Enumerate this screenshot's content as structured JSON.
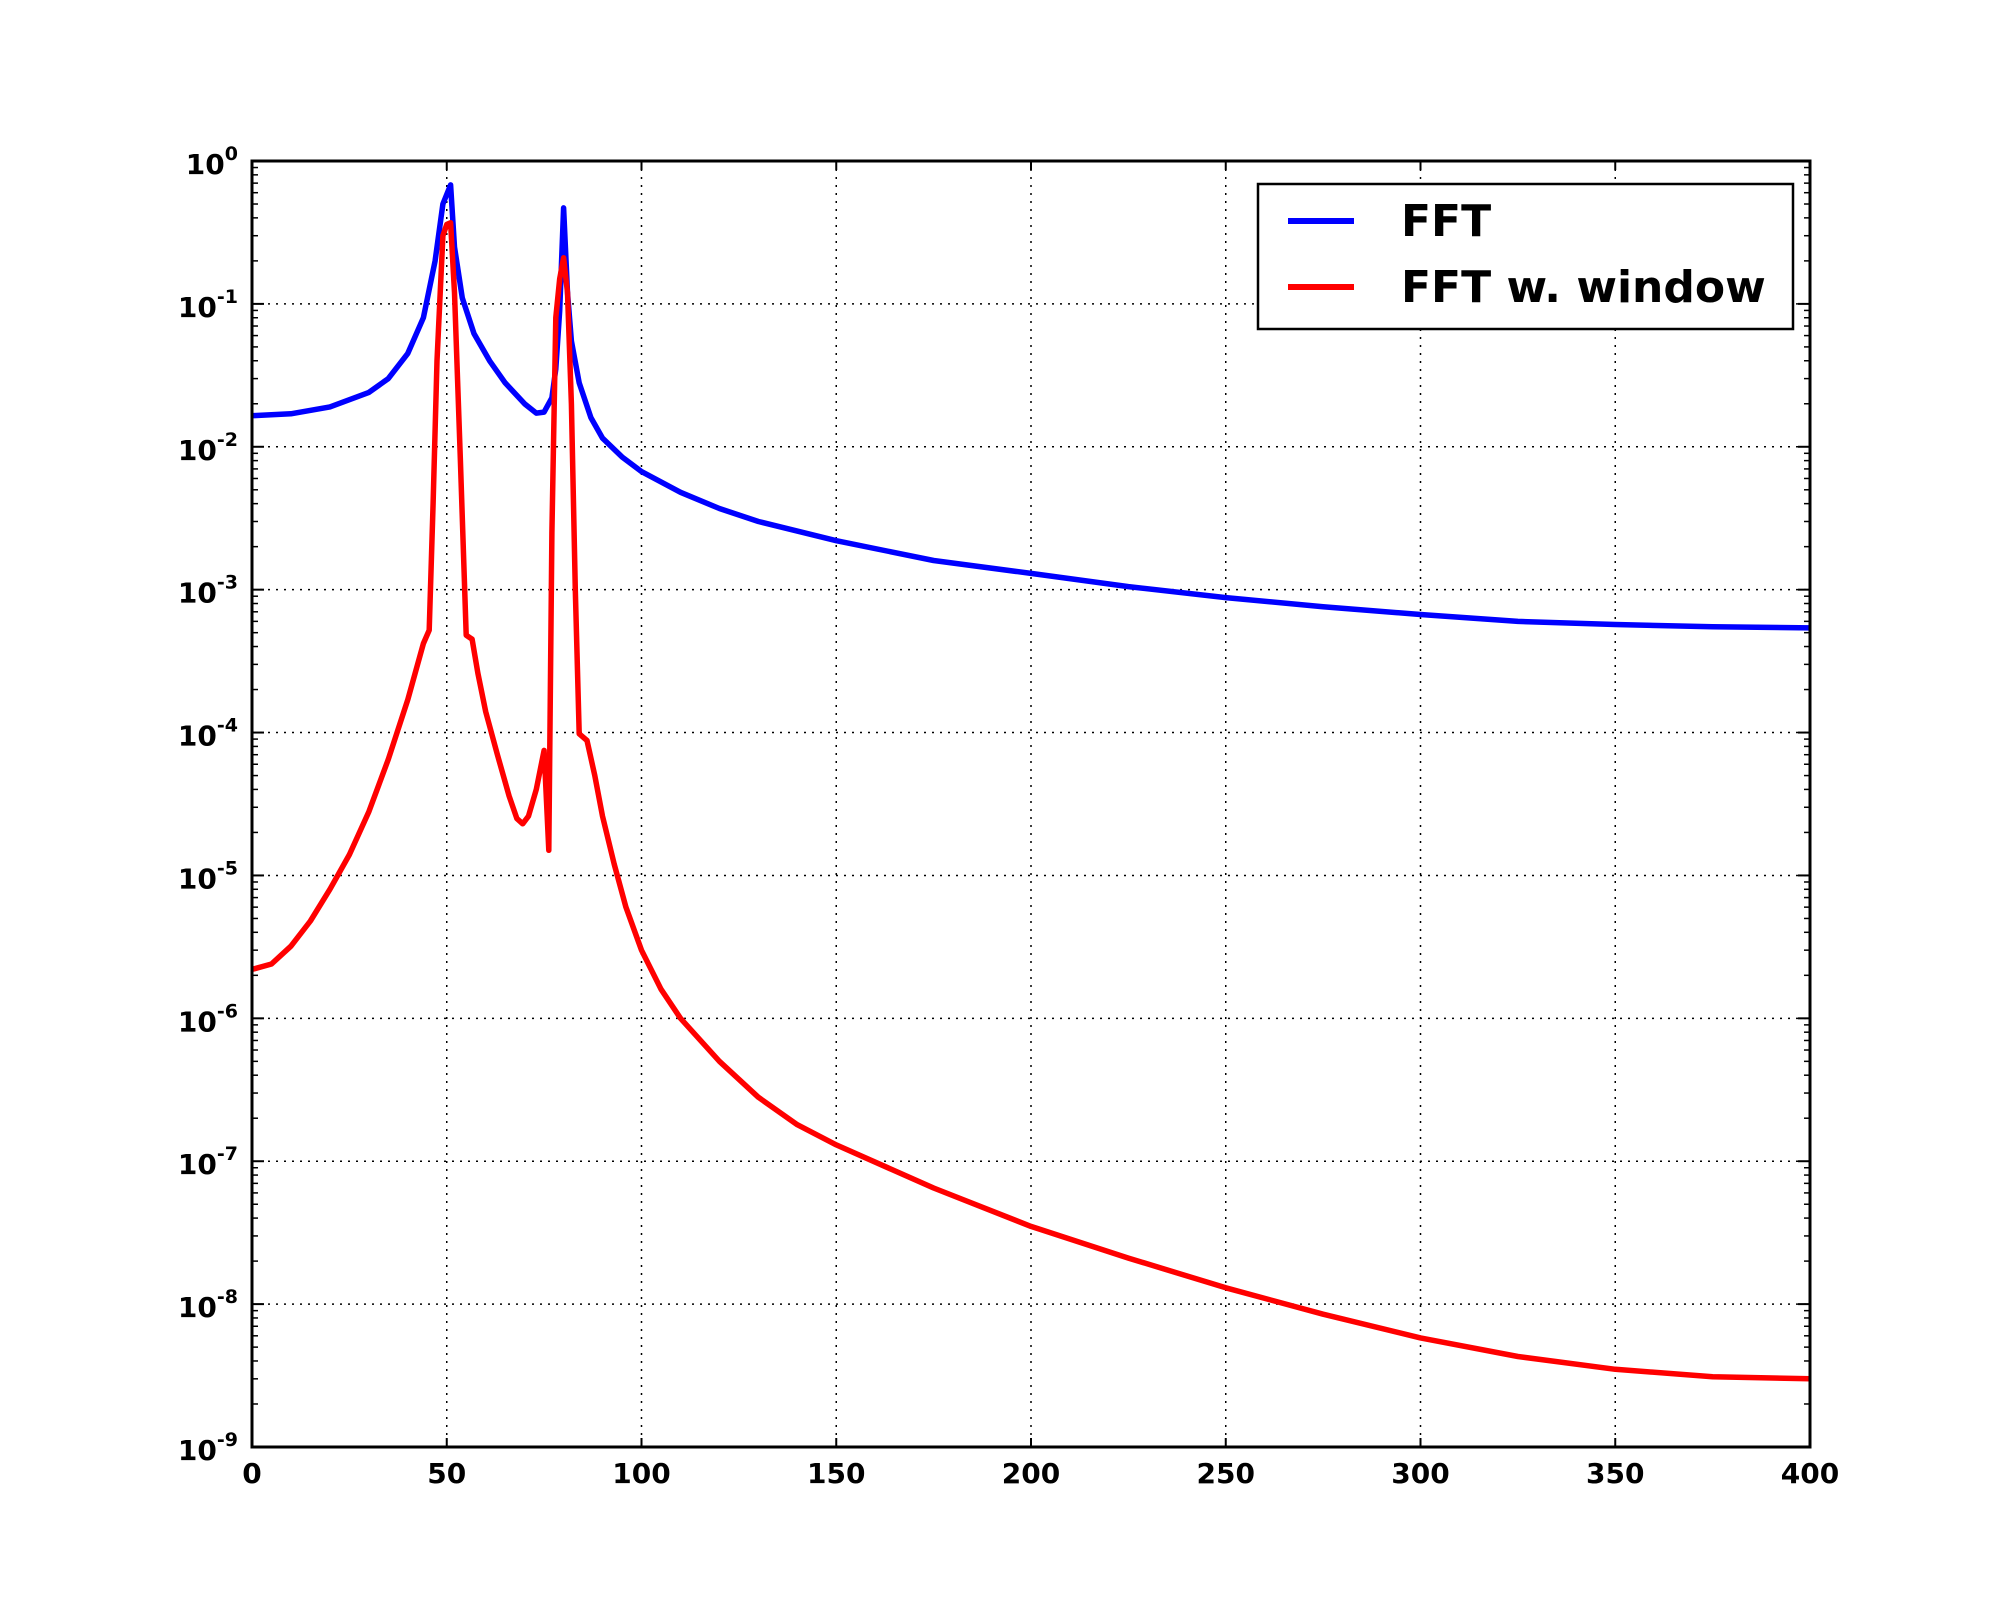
{
  "chart_data": {
    "type": "line",
    "title": "",
    "xlabel": "",
    "ylabel": "",
    "xlim": [
      0,
      400
    ],
    "ylim": [
      1e-09,
      1
    ],
    "yscale": "log",
    "grid": true,
    "legend_position": "top-right",
    "x_ticks": [
      "0",
      "50",
      "100",
      "150",
      "200",
      "250",
      "300",
      "350",
      "400"
    ],
    "y_ticks": [
      {
        "base": "10",
        "exp": "-9"
      },
      {
        "base": "10",
        "exp": "-8"
      },
      {
        "base": "10",
        "exp": "-7"
      },
      {
        "base": "10",
        "exp": "-6"
      },
      {
        "base": "10",
        "exp": "-5"
      },
      {
        "base": "10",
        "exp": "-4"
      },
      {
        "base": "10",
        "exp": "-3"
      },
      {
        "base": "10",
        "exp": "-2"
      },
      {
        "base": "10",
        "exp": "-1"
      },
      {
        "base": "10",
        "exp": "0"
      }
    ],
    "series": [
      {
        "name": "FFT",
        "color": "#0000ff",
        "points": [
          [
            0,
            0.0165
          ],
          [
            10,
            0.017
          ],
          [
            20,
            0.019
          ],
          [
            30,
            0.024
          ],
          [
            35,
            0.03
          ],
          [
            40,
            0.045
          ],
          [
            44,
            0.08
          ],
          [
            47,
            0.2
          ],
          [
            49,
            0.5
          ],
          [
            51,
            0.68
          ],
          [
            52,
            0.25
          ],
          [
            54,
            0.11
          ],
          [
            57,
            0.062
          ],
          [
            61,
            0.04
          ],
          [
            65,
            0.028
          ],
          [
            70,
            0.02
          ],
          [
            73,
            0.0172
          ],
          [
            75,
            0.0175
          ],
          [
            77,
            0.022
          ],
          [
            78,
            0.035
          ],
          [
            79,
            0.09
          ],
          [
            80,
            0.47
          ],
          [
            81,
            0.12
          ],
          [
            82,
            0.055
          ],
          [
            84,
            0.028
          ],
          [
            87,
            0.016
          ],
          [
            90,
            0.0115
          ],
          [
            95,
            0.0085
          ],
          [
            100,
            0.0067
          ],
          [
            110,
            0.0048
          ],
          [
            120,
            0.0037
          ],
          [
            130,
            0.003
          ],
          [
            150,
            0.0022
          ],
          [
            175,
            0.0016
          ],
          [
            200,
            0.0013
          ],
          [
            225,
            0.00105
          ],
          [
            250,
            0.00088
          ],
          [
            275,
            0.00076
          ],
          [
            300,
            0.00067
          ],
          [
            325,
            0.0006
          ],
          [
            350,
            0.00057
          ],
          [
            375,
            0.00055
          ],
          [
            400,
            0.00054
          ]
        ]
      },
      {
        "name": "FFT w. window",
        "color": "#ff0000",
        "points": [
          [
            0,
            2.2e-06
          ],
          [
            5,
            2.4e-06
          ],
          [
            10,
            3.2e-06
          ],
          [
            15,
            4.8e-06
          ],
          [
            20,
            8e-06
          ],
          [
            25,
            1.4e-05
          ],
          [
            30,
            2.8e-05
          ],
          [
            35,
            6.5e-05
          ],
          [
            40,
            0.00017
          ],
          [
            44,
            0.00042
          ],
          [
            45.5,
            0.00052
          ],
          [
            46.5,
            0.004
          ],
          [
            47.5,
            0.04
          ],
          [
            49,
            0.3
          ],
          [
            50,
            0.36
          ],
          [
            51,
            0.37
          ],
          [
            52,
            0.12
          ],
          [
            53.5,
            0.008
          ],
          [
            55,
            0.00048
          ],
          [
            56.5,
            0.00045
          ],
          [
            58,
            0.00026
          ],
          [
            60,
            0.00014
          ],
          [
            63,
            7e-05
          ],
          [
            66,
            3.6e-05
          ],
          [
            68,
            2.5e-05
          ],
          [
            69.5,
            2.3e-05
          ],
          [
            71,
            2.6e-05
          ],
          [
            73,
            4e-05
          ],
          [
            75,
            7.5e-05
          ],
          [
            76.2,
            1.5e-05
          ],
          [
            77,
            0.0025
          ],
          [
            78,
            0.08
          ],
          [
            79,
            0.15
          ],
          [
            80,
            0.21
          ],
          [
            81,
            0.12
          ],
          [
            82,
            0.02
          ],
          [
            83,
            0.001
          ],
          [
            84,
            9.8e-05
          ],
          [
            86,
            8.8e-05
          ],
          [
            88,
            5e-05
          ],
          [
            90,
            2.6e-05
          ],
          [
            93,
            1.2e-05
          ],
          [
            96,
            6e-06
          ],
          [
            100,
            3e-06
          ],
          [
            105,
            1.6e-06
          ],
          [
            110,
            1e-06
          ],
          [
            120,
            5e-07
          ],
          [
            130,
            2.8e-07
          ],
          [
            140,
            1.8e-07
          ],
          [
            150,
            1.3e-07
          ],
          [
            175,
            6.5e-08
          ],
          [
            200,
            3.5e-08
          ],
          [
            225,
            2.1e-08
          ],
          [
            250,
            1.3e-08
          ],
          [
            275,
            8.5e-09
          ],
          [
            300,
            5.8e-09
          ],
          [
            325,
            4.3e-09
          ],
          [
            350,
            3.5e-09
          ],
          [
            375,
            3.1e-09
          ],
          [
            400,
            3e-09
          ]
        ]
      }
    ]
  }
}
